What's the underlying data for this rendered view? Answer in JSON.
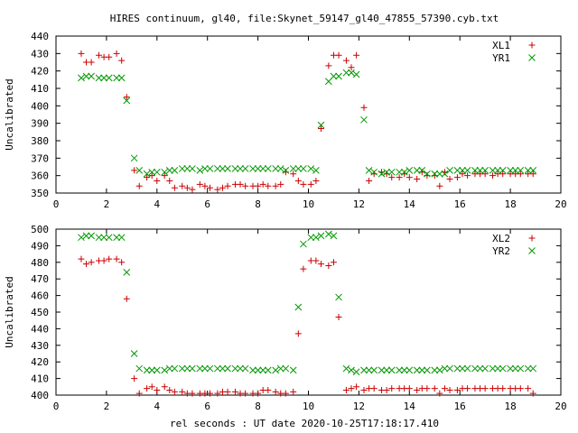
{
  "figure_title": "HIRES continuum, gl40, file:Skynet_59147_gl40_47855_57390.cyb.txt",
  "x_axis_label": "rel seconds : UT date 2020-10-25T17:18:17.410",
  "colors": {
    "red_series": "#cc0000",
    "green_series": "#009900",
    "axes": "#000000"
  },
  "chart_data": [
    {
      "type": "scatter",
      "ylabel": "Uncalibrated",
      "xlabel": "",
      "xlim": [
        0,
        20
      ],
      "ylim": [
        350,
        440
      ],
      "xticks": [
        0,
        2,
        4,
        6,
        8,
        10,
        12,
        14,
        16,
        18,
        20
      ],
      "yticks": [
        350,
        360,
        370,
        380,
        390,
        400,
        410,
        420,
        430,
        440
      ],
      "legend_position": "top-right",
      "x": [
        1.0,
        1.2,
        1.4,
        1.7,
        1.9,
        2.1,
        2.4,
        2.6,
        2.8,
        3.1,
        3.3,
        3.6,
        3.8,
        4.0,
        4.3,
        4.5,
        4.7,
        5.0,
        5.2,
        5.4,
        5.7,
        5.9,
        6.1,
        6.4,
        6.6,
        6.8,
        7.1,
        7.3,
        7.5,
        7.8,
        8.0,
        8.2,
        8.4,
        8.7,
        8.9,
        9.1,
        9.4,
        9.6,
        9.8,
        10.1,
        10.3,
        10.5,
        10.8,
        11.0,
        11.2,
        11.5,
        11.7,
        11.9,
        12.2,
        12.4,
        12.6,
        12.9,
        13.1,
        13.3,
        13.6,
        13.8,
        14.0,
        14.3,
        14.5,
        14.7,
        15.0,
        15.2,
        15.4,
        15.6,
        15.9,
        16.1,
        16.3,
        16.6,
        16.8,
        17.0,
        17.3,
        17.5,
        17.7,
        18.0,
        18.2,
        18.4,
        18.7,
        18.9
      ],
      "series": [
        {
          "name": "XL1",
          "marker": "plus",
          "color": "#cc0000",
          "values": [
            430,
            425,
            425,
            429,
            428,
            428,
            430,
            426,
            405,
            363,
            354,
            359,
            360,
            357,
            360,
            357,
            353,
            354,
            353,
            352,
            355,
            354,
            353,
            352,
            353,
            354,
            355,
            355,
            354,
            354,
            354,
            355,
            354,
            354,
            355,
            362,
            361,
            357,
            355,
            355,
            357,
            387,
            423,
            429,
            429,
            426,
            422,
            429,
            399,
            357,
            361,
            362,
            361,
            359,
            359,
            361,
            359,
            358,
            362,
            360,
            360,
            354,
            362,
            358,
            359,
            361,
            360,
            361,
            361,
            361,
            360,
            361,
            361,
            361,
            361,
            361,
            361,
            361
          ]
        },
        {
          "name": "YR1",
          "marker": "cross",
          "color": "#009900",
          "values": [
            416,
            417,
            417,
            416,
            416,
            416,
            416,
            416,
            403,
            370,
            363,
            361,
            362,
            362,
            362,
            363,
            363,
            364,
            364,
            364,
            363,
            364,
            364,
            364,
            364,
            364,
            364,
            364,
            364,
            364,
            364,
            364,
            364,
            364,
            364,
            363,
            364,
            364,
            364,
            364,
            363,
            389,
            414,
            417,
            417,
            419,
            419,
            418,
            392,
            363,
            362,
            361,
            362,
            362,
            362,
            362,
            363,
            363,
            363,
            361,
            361,
            361,
            361,
            363,
            363,
            363,
            363,
            363,
            363,
            363,
            363,
            363,
            363,
            363,
            363,
            363,
            363,
            363
          ]
        }
      ]
    },
    {
      "type": "scatter",
      "ylabel": "Uncalibrated",
      "xlabel": "rel seconds : UT date 2020-10-25T17:18:17.410",
      "xlim": [
        0,
        20
      ],
      "ylim": [
        400,
        500
      ],
      "xticks": [
        0,
        2,
        4,
        6,
        8,
        10,
        12,
        14,
        16,
        18,
        20
      ],
      "yticks": [
        400,
        410,
        420,
        430,
        440,
        450,
        460,
        470,
        480,
        490,
        500
      ],
      "legend_position": "top-right",
      "x": [
        1.0,
        1.2,
        1.4,
        1.7,
        1.9,
        2.1,
        2.4,
        2.6,
        2.8,
        3.1,
        3.3,
        3.6,
        3.8,
        4.0,
        4.3,
        4.5,
        4.7,
        5.0,
        5.2,
        5.4,
        5.7,
        5.9,
        6.1,
        6.4,
        6.6,
        6.8,
        7.1,
        7.3,
        7.5,
        7.8,
        8.0,
        8.2,
        8.4,
        8.7,
        8.9,
        9.1,
        9.4,
        9.6,
        9.8,
        10.1,
        10.3,
        10.5,
        10.8,
        11.0,
        11.2,
        11.5,
        11.7,
        11.9,
        12.2,
        12.4,
        12.6,
        12.9,
        13.1,
        13.3,
        13.6,
        13.8,
        14.0,
        14.3,
        14.5,
        14.7,
        15.0,
        15.2,
        15.4,
        15.6,
        15.9,
        16.1,
        16.3,
        16.6,
        16.8,
        17.0,
        17.3,
        17.5,
        17.7,
        18.0,
        18.2,
        18.4,
        18.7,
        18.9
      ],
      "series": [
        {
          "name": "XL2",
          "marker": "plus",
          "color": "#cc0000",
          "values": [
            482,
            479,
            480,
            481,
            481,
            482,
            482,
            480,
            458,
            410,
            401,
            404,
            405,
            403,
            405,
            403,
            402,
            402,
            401,
            401,
            401,
            401,
            401,
            401,
            402,
            402,
            402,
            401,
            401,
            401,
            401,
            403,
            403,
            402,
            401,
            401,
            402,
            437,
            476,
            481,
            481,
            479,
            478,
            480,
            447,
            403,
            404,
            405,
            403,
            404,
            404,
            403,
            403,
            404,
            404,
            404,
            404,
            403,
            404,
            404,
            404,
            401,
            404,
            403,
            403,
            404,
            404,
            404,
            404,
            404,
            404,
            404,
            404,
            404,
            404,
            404,
            404,
            401
          ]
        },
        {
          "name": "YR2",
          "marker": "cross",
          "color": "#009900",
          "values": [
            495,
            496,
            496,
            495,
            495,
            495,
            495,
            495,
            474,
            425,
            416,
            415,
            415,
            415,
            415,
            416,
            416,
            416,
            416,
            416,
            416,
            416,
            416,
            416,
            416,
            416,
            416,
            416,
            416,
            415,
            415,
            415,
            415,
            415,
            416,
            416,
            415,
            453,
            491,
            495,
            495,
            496,
            497,
            496,
            459,
            416,
            415,
            414,
            415,
            415,
            415,
            415,
            415,
            415,
            415,
            415,
            415,
            415,
            415,
            415,
            415,
            415,
            416,
            416,
            416,
            416,
            416,
            416,
            416,
            416,
            416,
            416,
            416,
            416,
            416,
            416,
            416,
            416
          ]
        }
      ]
    }
  ]
}
